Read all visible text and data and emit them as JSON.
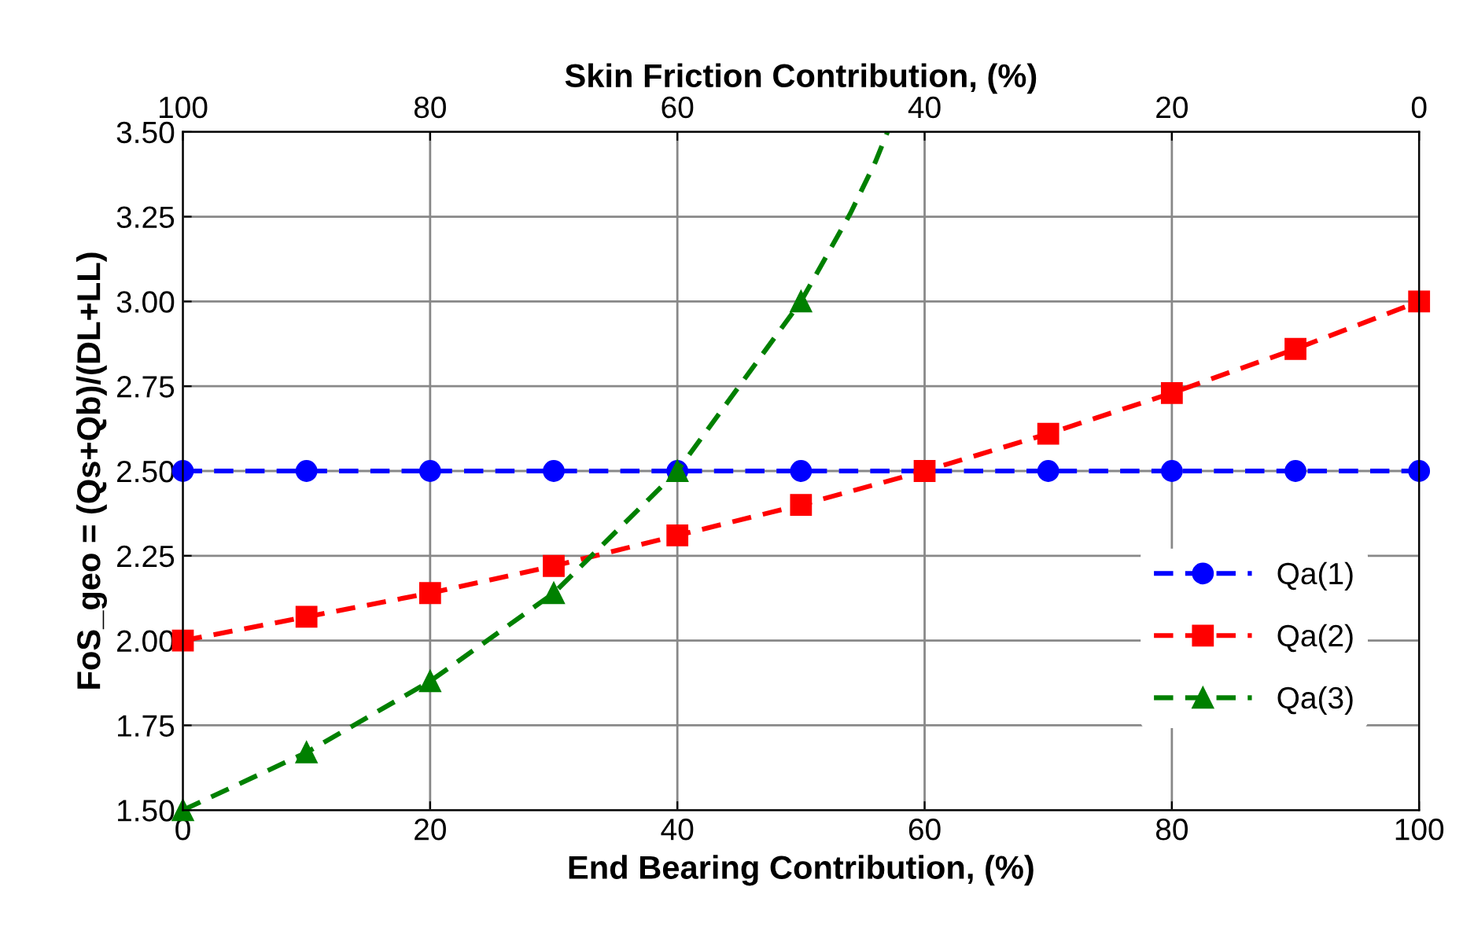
{
  "chart_data": {
    "type": "line",
    "xlabel": "End Bearing Contribution, (%)",
    "ylabel": "FoS_geo = (Qs+Qb)/(DL+LL)",
    "x2label": "Skin Friction Contribution, (%)",
    "x": [
      0,
      10,
      20,
      30,
      40,
      50,
      60,
      70,
      80,
      90,
      100
    ],
    "series": [
      {
        "name": "Qa(1)",
        "color": "#0000ff",
        "marker": "circle",
        "values": [
          2.5,
          2.5,
          2.5,
          2.5,
          2.5,
          2.5,
          2.5,
          2.5,
          2.5,
          2.5,
          2.5
        ]
      },
      {
        "name": "Qa(2)",
        "color": "#ff0000",
        "marker": "square",
        "values": [
          2.0,
          2.07,
          2.14,
          2.22,
          2.31,
          2.4,
          2.5,
          2.61,
          2.73,
          2.86,
          3.0
        ]
      },
      {
        "name": "Qa(3)",
        "color": "#008000",
        "marker": "triangle",
        "x": [
          0,
          10,
          20,
          30,
          40,
          50
        ],
        "values": [
          1.5,
          1.67,
          1.88,
          2.14,
          2.5,
          3.0
        ]
      },
      {
        "color": "#008000",
        "marker": "none",
        "x": [
          50,
          52,
          54,
          56,
          57
        ],
        "values": [
          3.0,
          3.13,
          3.26,
          3.41,
          3.5
        ]
      }
    ],
    "line_style": "dashed",
    "xlim": [
      0,
      100
    ],
    "xticks": [
      0,
      20,
      40,
      60,
      80,
      100
    ],
    "x2lim": [
      100,
      0
    ],
    "x2ticks": [
      100,
      80,
      60,
      40,
      20,
      0
    ],
    "ylim": [
      1.5,
      3.5
    ],
    "yticks": [
      {
        "value": 1.5,
        "label": "1.50"
      },
      {
        "value": 1.75,
        "label": "1.75"
      },
      {
        "value": 2.0,
        "label": "2.00"
      },
      {
        "value": 2.25,
        "label": "2.25"
      },
      {
        "value": 2.5,
        "label": "2.50"
      },
      {
        "value": 2.75,
        "label": "2.75"
      },
      {
        "value": 3.0,
        "label": "3.00"
      },
      {
        "value": 3.25,
        "label": "3.25"
      },
      {
        "value": 3.5,
        "label": "3.50"
      }
    ],
    "grid": true,
    "legend": "lower right"
  }
}
